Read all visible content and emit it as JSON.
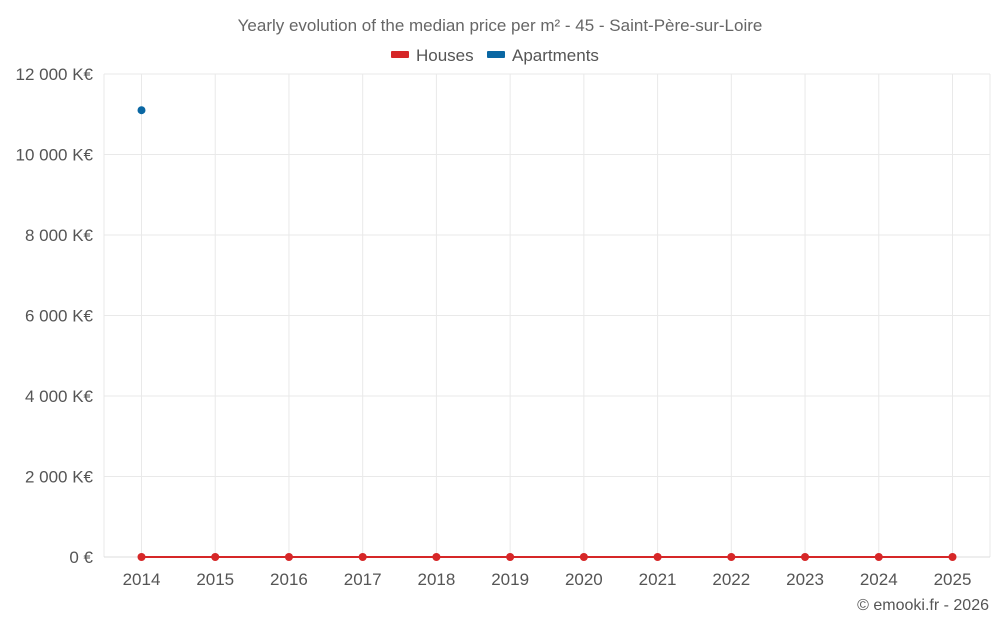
{
  "chart_data": {
    "type": "line",
    "title": "Yearly evolution of the median price per m² - 45 - Saint-Père-sur-Loire",
    "categories": [
      "2014",
      "2015",
      "2016",
      "2017",
      "2018",
      "2019",
      "2020",
      "2021",
      "2022",
      "2023",
      "2024",
      "2025"
    ],
    "y_ticks": [
      0,
      2000,
      4000,
      6000,
      8000,
      10000,
      12000
    ],
    "y_tick_labels": [
      "0 €",
      "2 000 K€",
      "4 000 K€",
      "6 000 K€",
      "8 000 K€",
      "10 000 K€",
      "12 000 K€"
    ],
    "ylim": [
      0,
      12000
    ],
    "y_unit": "K€",
    "grid": true,
    "legend_position": "top-center",
    "series": [
      {
        "name": "Houses",
        "color": "#d62728",
        "values": [
          0,
          0,
          0,
          0,
          0,
          0,
          0,
          0,
          0,
          0,
          0,
          0
        ]
      },
      {
        "name": "Apartments",
        "color": "#0a67a3",
        "values": [
          11100,
          null,
          null,
          null,
          null,
          null,
          null,
          null,
          null,
          null,
          null,
          null
        ]
      }
    ],
    "credit": "© emooki.fr - 2026"
  }
}
